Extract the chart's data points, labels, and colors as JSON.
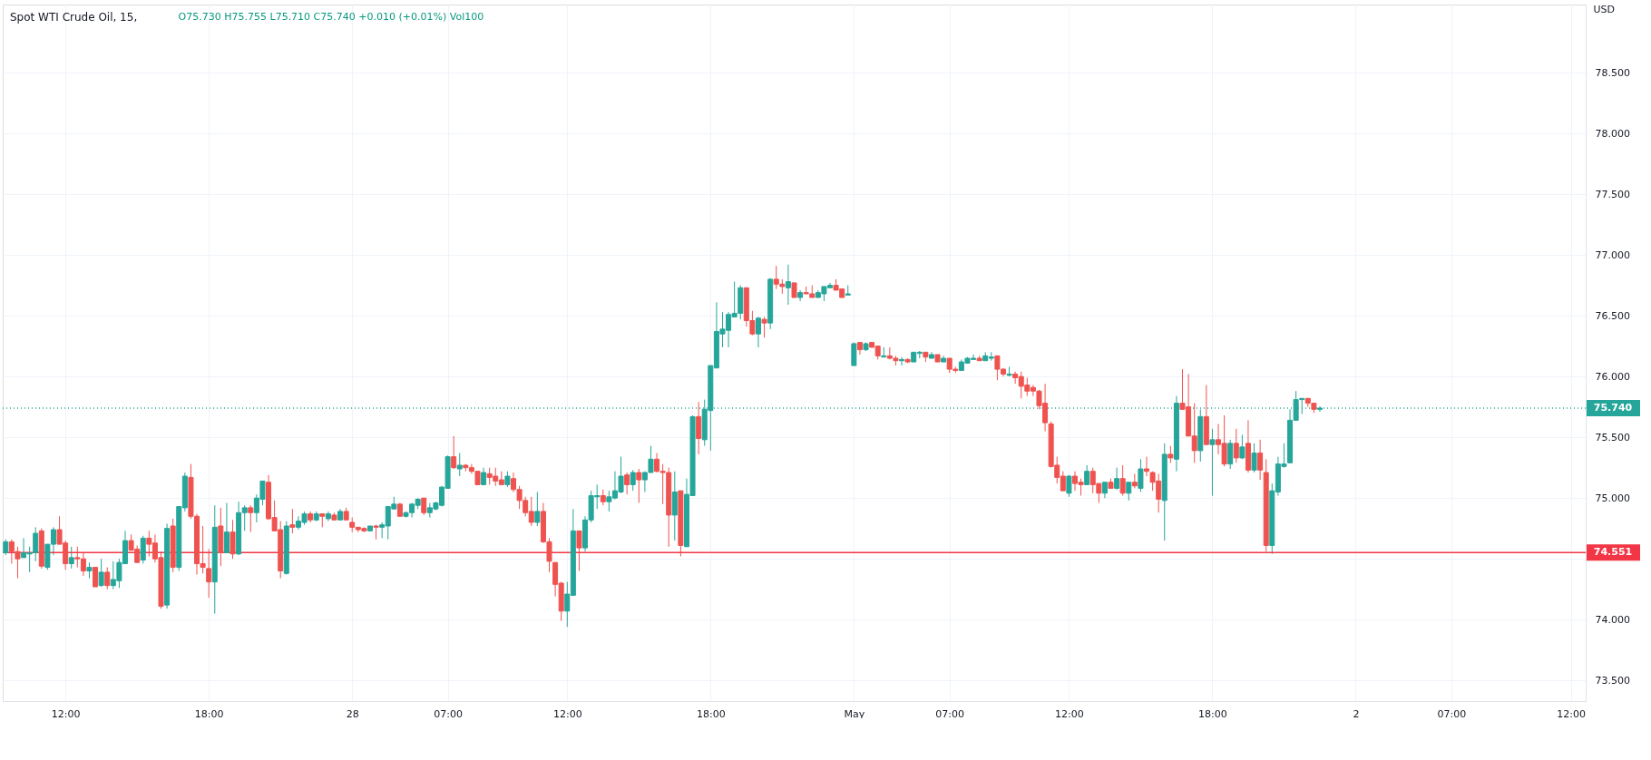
{
  "chart_data": {
    "type": "candlestick",
    "title": "Spot WTI Crude Oil, 15,",
    "subtitle": "O75.730 H75.755 L75.710 C75.740 +0.010 (+0.01%) Vol100",
    "ylabel": "USD",
    "categories": [
      null,
      null,
      null,
      null,
      null,
      null,
      null,
      null,
      null,
      null,
      "12:00",
      null,
      null,
      null,
      null,
      null,
      null,
      null,
      null,
      null,
      null,
      null,
      null,
      null,
      null,
      null,
      null,
      null,
      null,
      null,
      null,
      null,
      null,
      null,
      "18:00",
      null,
      null,
      null,
      null,
      null,
      null,
      null,
      null,
      null,
      null,
      null,
      null,
      null,
      null,
      null,
      null,
      null,
      null,
      null,
      null,
      null,
      null,
      null,
      "28",
      null,
      null,
      null,
      null,
      null,
      null,
      null,
      null,
      null,
      null,
      null,
      null,
      null,
      null,
      null,
      "07:00",
      null,
      null,
      null,
      null,
      null,
      null,
      null,
      null,
      null,
      null,
      null,
      null,
      null,
      null,
      null,
      null,
      null,
      null,
      null,
      "12:00",
      null,
      null,
      null,
      null,
      null,
      null,
      null,
      null,
      null,
      null,
      null,
      null,
      null,
      null,
      null,
      null,
      null,
      null,
      null,
      null,
      null,
      null,
      null,
      "18:00",
      null,
      null,
      null,
      null,
      null,
      null,
      null,
      null,
      null,
      null,
      null,
      null,
      null,
      null,
      null,
      null,
      null,
      null,
      null,
      null,
      null,
      null,
      null,
      "May",
      null,
      null,
      null,
      null,
      null,
      null,
      null,
      null,
      null,
      null,
      null,
      null,
      null,
      null,
      null,
      "07:00",
      null,
      null,
      null,
      null,
      null,
      null,
      null,
      null,
      null,
      null,
      null,
      null,
      null,
      null,
      null,
      null,
      null,
      null,
      null,
      "12:00",
      null,
      null,
      null,
      null,
      null,
      null,
      null,
      null,
      null,
      null,
      null,
      null,
      null,
      null,
      null,
      null,
      null,
      null,
      null,
      null,
      null,
      null,
      null,
      "18:00",
      null,
      null,
      null,
      null,
      null,
      null,
      null,
      null,
      null,
      null,
      null,
      null,
      null,
      null,
      null,
      null,
      null,
      null,
      null,
      null,
      null,
      null,
      null,
      "2",
      null,
      null,
      null,
      null,
      null,
      null,
      null,
      null,
      null,
      null,
      null,
      null,
      null,
      null,
      null,
      "07:00",
      null,
      null,
      null,
      null,
      null,
      null,
      null,
      null,
      null,
      null,
      null,
      null,
      null,
      null,
      null,
      null,
      null,
      null,
      null,
      "12:00",
      null,
      null
    ],
    "ohlc": [
      [
        74.55,
        74.66,
        74.53,
        74.64
      ],
      [
        74.64,
        74.66,
        74.46,
        74.56
      ],
      [
        74.56,
        74.6,
        74.34,
        74.5
      ],
      [
        74.51,
        74.67,
        74.51,
        74.55
      ],
      [
        74.54,
        74.6,
        74.39,
        74.55
      ],
      [
        74.55,
        74.76,
        74.48,
        74.71
      ],
      [
        74.73,
        74.75,
        74.42,
        74.44
      ],
      [
        74.43,
        74.62,
        74.41,
        74.62
      ],
      [
        74.62,
        74.76,
        74.53,
        74.74
      ],
      [
        74.74,
        74.85,
        74.62,
        74.62
      ],
      [
        74.63,
        74.65,
        74.41,
        74.46
      ],
      [
        74.46,
        74.6,
        74.42,
        74.51
      ],
      [
        74.51,
        74.6,
        74.43,
        74.5
      ],
      [
        74.5,
        74.55,
        74.36,
        74.4
      ],
      [
        74.4,
        74.47,
        74.34,
        74.43
      ],
      [
        74.43,
        74.43,
        74.27,
        74.27
      ],
      [
        74.28,
        74.5,
        74.27,
        74.39
      ],
      [
        74.39,
        74.43,
        74.25,
        74.28
      ],
      [
        74.28,
        74.48,
        74.25,
        74.33
      ],
      [
        74.32,
        74.5,
        74.26,
        74.47
      ],
      [
        74.46,
        74.73,
        74.46,
        74.65
      ],
      [
        74.65,
        74.7,
        74.57,
        74.57
      ],
      [
        74.58,
        74.61,
        74.47,
        74.47
      ],
      [
        74.49,
        74.69,
        74.46,
        74.67
      ],
      [
        74.67,
        74.73,
        74.52,
        74.62
      ],
      [
        74.63,
        74.7,
        74.47,
        74.5
      ],
      [
        74.51,
        74.56,
        74.09,
        74.11
      ],
      [
        74.12,
        74.79,
        74.09,
        74.75
      ],
      [
        74.77,
        74.83,
        74.39,
        74.43
      ],
      [
        74.43,
        74.93,
        74.4,
        74.93
      ],
      [
        74.92,
        75.21,
        74.89,
        75.18
      ],
      [
        75.17,
        75.28,
        74.83,
        74.85
      ],
      [
        74.85,
        74.87,
        74.37,
        74.46
      ],
      [
        74.46,
        74.77,
        74.38,
        74.43
      ],
      [
        74.42,
        74.58,
        74.18,
        74.31
      ],
      [
        74.31,
        74.94,
        74.05,
        74.76
      ],
      [
        74.77,
        74.92,
        74.44,
        74.55
      ],
      [
        74.55,
        74.96,
        74.55,
        74.72
      ],
      [
        74.72,
        74.82,
        74.5,
        74.54
      ],
      [
        74.54,
        74.97,
        74.53,
        74.88
      ],
      [
        74.88,
        74.94,
        74.73,
        74.92
      ],
      [
        74.92,
        74.94,
        74.72,
        74.88
      ],
      [
        74.88,
        75.03,
        74.8,
        75.0
      ],
      [
        74.99,
        75.14,
        74.94,
        75.14
      ],
      [
        75.13,
        75.19,
        74.82,
        74.83
      ],
      [
        74.84,
        74.98,
        74.73,
        74.73
      ],
      [
        74.74,
        74.81,
        74.34,
        74.4
      ],
      [
        74.38,
        74.81,
        74.37,
        74.77
      ],
      [
        74.78,
        74.91,
        74.71,
        74.76
      ],
      [
        74.76,
        74.85,
        74.74,
        74.81
      ],
      [
        74.8,
        74.89,
        74.78,
        74.87
      ],
      [
        74.87,
        74.89,
        74.8,
        74.82
      ],
      [
        74.82,
        74.89,
        74.81,
        74.87
      ],
      [
        74.87,
        74.87,
        74.76,
        74.85
      ],
      [
        74.83,
        74.89,
        74.81,
        74.87
      ],
      [
        74.86,
        74.88,
        74.82,
        74.82
      ],
      [
        74.82,
        74.91,
        74.82,
        74.89
      ],
      [
        74.89,
        74.92,
        74.82,
        74.82
      ],
      [
        74.8,
        74.84,
        74.72,
        74.76
      ],
      [
        74.76,
        74.76,
        74.72,
        74.74
      ],
      [
        74.75,
        74.76,
        74.72,
        74.73
      ],
      [
        74.73,
        74.77,
        74.73,
        74.77
      ],
      [
        74.77,
        74.78,
        74.66,
        74.76
      ],
      [
        74.76,
        74.8,
        74.67,
        74.78
      ],
      [
        74.77,
        74.93,
        74.66,
        74.93
      ],
      [
        74.91,
        75.01,
        74.91,
        74.95
      ],
      [
        74.95,
        74.96,
        74.85,
        74.85
      ],
      [
        74.85,
        74.89,
        74.84,
        74.88
      ],
      [
        74.88,
        74.96,
        74.84,
        74.95
      ],
      [
        74.94,
        75.0,
        74.91,
        74.99
      ],
      [
        75.0,
        75.0,
        74.86,
        74.88
      ],
      [
        74.88,
        74.96,
        74.84,
        74.92
      ],
      [
        74.91,
        74.97,
        74.9,
        74.96
      ],
      [
        74.94,
        75.1,
        74.93,
        75.09
      ],
      [
        75.08,
        75.35,
        75.08,
        75.34
      ],
      [
        75.34,
        75.51,
        75.24,
        75.25
      ],
      [
        75.24,
        75.37,
        75.18,
        75.27
      ],
      [
        75.27,
        75.28,
        75.22,
        75.25
      ],
      [
        75.25,
        75.28,
        75.2,
        75.22
      ],
      [
        75.22,
        75.22,
        75.11,
        75.11
      ],
      [
        75.11,
        75.25,
        75.11,
        75.21
      ],
      [
        75.2,
        75.25,
        75.11,
        75.17
      ],
      [
        75.18,
        75.25,
        75.1,
        75.14
      ],
      [
        75.15,
        75.22,
        75.11,
        75.11
      ],
      [
        75.11,
        75.22,
        75.09,
        75.18
      ],
      [
        75.16,
        75.21,
        75.05,
        75.07
      ],
      [
        75.07,
        75.1,
        74.91,
        74.98
      ],
      [
        74.98,
        75.01,
        74.85,
        74.88
      ],
      [
        74.89,
        75.01,
        74.77,
        74.8
      ],
      [
        74.8,
        75.05,
        74.77,
        74.89
      ],
      [
        74.89,
        74.96,
        74.63,
        74.64
      ],
      [
        74.64,
        74.67,
        74.39,
        74.48
      ],
      [
        74.47,
        74.47,
        74.19,
        74.29
      ],
      [
        74.3,
        74.31,
        73.99,
        74.07
      ],
      [
        74.07,
        74.31,
        73.94,
        74.21
      ],
      [
        74.2,
        74.91,
        74.2,
        74.73
      ],
      [
        74.73,
        74.73,
        74.4,
        74.59
      ],
      [
        74.59,
        74.85,
        74.56,
        74.82
      ],
      [
        74.82,
        75.06,
        74.8,
        75.02
      ],
      [
        75.01,
        75.11,
        74.91,
        75.02
      ],
      [
        75.02,
        75.07,
        74.94,
        74.97
      ],
      [
        74.97,
        75.06,
        74.89,
        75.01
      ],
      [
        75.0,
        75.22,
        74.99,
        75.06
      ],
      [
        75.05,
        75.34,
        75.04,
        75.18
      ],
      [
        75.19,
        75.21,
        75.03,
        75.11
      ],
      [
        75.11,
        75.23,
        75.06,
        75.21
      ],
      [
        75.21,
        75.24,
        74.96,
        75.15
      ],
      [
        75.15,
        75.22,
        75.05,
        75.21
      ],
      [
        75.21,
        75.43,
        75.21,
        75.32
      ],
      [
        75.32,
        75.37,
        75.21,
        75.22
      ],
      [
        75.22,
        75.28,
        74.95,
        75.21
      ],
      [
        75.21,
        75.25,
        74.6,
        74.86
      ],
      [
        74.86,
        75.22,
        74.65,
        75.05
      ],
      [
        75.06,
        75.06,
        74.52,
        74.61
      ],
      [
        74.6,
        75.16,
        74.6,
        75.03
      ],
      [
        75.02,
        75.68,
        75.02,
        75.67
      ],
      [
        75.67,
        75.79,
        75.36,
        75.49
      ],
      [
        75.48,
        75.81,
        75.43,
        75.73
      ],
      [
        75.72,
        76.09,
        75.39,
        76.09
      ],
      [
        76.07,
        76.61,
        76.07,
        76.37
      ],
      [
        76.35,
        76.53,
        76.24,
        76.39
      ],
      [
        76.38,
        76.53,
        76.24,
        76.51
      ],
      [
        76.49,
        76.78,
        76.49,
        76.52
      ],
      [
        76.52,
        76.75,
        76.47,
        76.73
      ],
      [
        76.73,
        76.73,
        76.41,
        76.46
      ],
      [
        76.46,
        76.54,
        76.34,
        76.35
      ],
      [
        76.35,
        76.49,
        76.24,
        76.48
      ],
      [
        76.47,
        76.49,
        76.32,
        76.44
      ],
      [
        76.44,
        76.81,
        76.39,
        76.8
      ],
      [
        76.8,
        76.91,
        76.72,
        76.76
      ],
      [
        76.76,
        76.8,
        76.68,
        76.74
      ],
      [
        76.73,
        76.92,
        76.59,
        76.78
      ],
      [
        76.77,
        76.77,
        76.65,
        76.65
      ],
      [
        76.65,
        76.71,
        76.62,
        76.69
      ],
      [
        76.69,
        76.74,
        76.68,
        76.68
      ],
      [
        76.68,
        76.75,
        76.65,
        76.65
      ],
      [
        76.65,
        76.71,
        76.65,
        76.69
      ],
      [
        76.68,
        76.74,
        76.62,
        76.74
      ],
      [
        76.73,
        76.77,
        76.73,
        76.75
      ],
      [
        76.75,
        76.8,
        76.71,
        76.71
      ],
      [
        76.72,
        76.72,
        76.65,
        76.65
      ],
      [
        76.67,
        76.75,
        76.67,
        76.68
      ],
      [
        76.09,
        76.28,
        76.09,
        76.27
      ],
      [
        76.28,
        76.28,
        76.18,
        76.22
      ],
      [
        76.22,
        76.28,
        76.21,
        76.27
      ],
      [
        76.28,
        76.28,
        76.24,
        76.24
      ],
      [
        76.25,
        76.25,
        76.14,
        76.17
      ],
      [
        76.16,
        76.24,
        76.16,
        76.17
      ],
      [
        76.17,
        76.24,
        76.14,
        76.15
      ],
      [
        76.15,
        76.17,
        76.09,
        76.13
      ],
      [
        76.13,
        76.16,
        76.09,
        76.14
      ],
      [
        76.14,
        76.15,
        76.11,
        76.12
      ],
      [
        76.12,
        76.2,
        76.12,
        76.2
      ],
      [
        76.19,
        76.21,
        76.15,
        76.2
      ],
      [
        76.2,
        76.2,
        76.12,
        76.16
      ],
      [
        76.15,
        76.2,
        76.15,
        76.18
      ],
      [
        76.18,
        76.18,
        76.12,
        76.12
      ],
      [
        76.12,
        76.17,
        76.12,
        76.15
      ],
      [
        76.15,
        76.15,
        76.03,
        76.06
      ],
      [
        76.06,
        76.08,
        76.03,
        76.05
      ],
      [
        76.05,
        76.14,
        76.05,
        76.12
      ],
      [
        76.11,
        76.16,
        76.11,
        76.15
      ],
      [
        76.14,
        76.18,
        76.14,
        76.15
      ],
      [
        76.15,
        76.17,
        76.13,
        76.13
      ],
      [
        76.13,
        76.2,
        76.13,
        76.17
      ],
      [
        76.15,
        76.2,
        76.13,
        76.16
      ],
      [
        76.17,
        76.17,
        75.97,
        76.06
      ],
      [
        76.06,
        76.07,
        76.0,
        76.02
      ],
      [
        76.01,
        76.08,
        76.0,
        76.02
      ],
      [
        76.02,
        76.04,
        75.94,
        75.99
      ],
      [
        76.0,
        76.04,
        75.82,
        75.92
      ],
      [
        75.93,
        75.99,
        75.84,
        75.88
      ],
      [
        75.91,
        75.93,
        75.84,
        75.88
      ],
      [
        75.88,
        75.89,
        75.73,
        75.76
      ],
      [
        75.78,
        75.94,
        75.55,
        75.62
      ],
      [
        75.61,
        75.63,
        75.25,
        75.26
      ],
      [
        75.27,
        75.34,
        75.12,
        75.17
      ],
      [
        75.18,
        75.22,
        75.06,
        75.06
      ],
      [
        75.04,
        75.19,
        75.01,
        75.18
      ],
      [
        75.18,
        75.22,
        75.06,
        75.12
      ],
      [
        75.13,
        75.16,
        75.02,
        75.11
      ],
      [
        75.11,
        75.27,
        75.11,
        75.22
      ],
      [
        75.22,
        75.25,
        75.04,
        75.11
      ],
      [
        75.12,
        75.12,
        74.96,
        75.04
      ],
      [
        75.04,
        75.13,
        75.0,
        75.13
      ],
      [
        75.13,
        75.16,
        75.08,
        75.08
      ],
      [
        75.08,
        75.25,
        75.07,
        75.16
      ],
      [
        75.16,
        75.27,
        75.02,
        75.04
      ],
      [
        75.04,
        75.13,
        74.98,
        75.13
      ],
      [
        75.13,
        75.2,
        75.08,
        75.1
      ],
      [
        75.08,
        75.32,
        75.05,
        75.24
      ],
      [
        75.24,
        75.34,
        75.18,
        75.22
      ],
      [
        75.21,
        75.22,
        75.06,
        75.13
      ],
      [
        75.14,
        75.2,
        74.88,
        74.99
      ],
      [
        74.98,
        75.45,
        74.65,
        75.36
      ],
      [
        75.36,
        75.43,
        75.29,
        75.33
      ],
      [
        75.32,
        75.84,
        75.22,
        75.78
      ],
      [
        75.78,
        76.06,
        75.73,
        75.73
      ],
      [
        75.75,
        76.02,
        75.51,
        75.51
      ],
      [
        75.51,
        75.78,
        75.29,
        75.39
      ],
      [
        75.39,
        75.73,
        75.3,
        75.67
      ],
      [
        75.67,
        75.93,
        75.44,
        75.44
      ],
      [
        75.44,
        75.57,
        75.02,
        75.48
      ],
      [
        75.48,
        75.61,
        75.36,
        75.44
      ],
      [
        75.45,
        75.68,
        75.26,
        75.28
      ],
      [
        75.28,
        75.48,
        75.24,
        75.45
      ],
      [
        75.45,
        75.57,
        75.29,
        75.33
      ],
      [
        75.33,
        75.52,
        75.32,
        75.42
      ],
      [
        75.45,
        75.64,
        75.21,
        75.23
      ],
      [
        75.23,
        75.45,
        75.21,
        75.37
      ],
      [
        75.37,
        75.48,
        75.15,
        75.23
      ],
      [
        75.21,
        75.32,
        74.56,
        74.61
      ],
      [
        74.61,
        75.12,
        74.54,
        75.06
      ],
      [
        75.05,
        75.34,
        75.02,
        75.28
      ],
      [
        75.26,
        75.45,
        75.25,
        75.28
      ],
      [
        75.29,
        75.73,
        75.29,
        75.64
      ],
      [
        75.64,
        75.88,
        75.64,
        75.81
      ],
      [
        75.81,
        75.82,
        75.69,
        75.82
      ],
      [
        75.82,
        75.82,
        75.75,
        75.78
      ],
      [
        75.78,
        75.78,
        75.7,
        75.73
      ],
      [
        75.73,
        75.755,
        75.71,
        75.74
      ],
      null,
      null,
      null,
      null,
      null,
      null,
      null,
      null,
      null,
      null,
      null,
      null,
      null,
      null,
      null,
      null,
      null,
      null,
      null,
      null,
      null,
      null,
      null,
      null,
      null,
      null,
      null,
      null,
      null,
      null,
      null,
      null,
      null,
      null,
      null,
      null,
      null,
      null,
      null,
      null,
      null,
      null,
      null,
      null
    ],
    "colors": [
      "#26a69a",
      "#ef5350",
      "#ef5350",
      "#26a69a",
      "#26a69a",
      "#26a69a",
      "#ef5350",
      "#26a69a",
      "#26a69a",
      "#ef5350",
      "#ef5350",
      "#26a69a",
      "#ef5350",
      "#ef5350",
      "#26a69a",
      "#ef5350",
      "#26a69a",
      "#ef5350",
      "#26a69a",
      "#26a69a",
      "#26a69a",
      "#ef5350",
      "#ef5350",
      "#26a69a",
      "#ef5350",
      "#ef5350",
      "#ef5350",
      "#26a69a",
      "#ef5350",
      "#26a69a",
      "#26a69a",
      "#ef5350",
      "#ef5350",
      "#ef5350",
      "#ef5350",
      "#26a69a",
      "#ef5350",
      "#26a69a",
      "#ef5350",
      "#26a69a",
      "#26a69a",
      "#ef5350",
      "#26a69a",
      "#26a69a",
      "#ef5350",
      "#ef5350",
      "#ef5350",
      "#26a69a",
      "#ef5350",
      "#26a69a",
      "#26a69a",
      "#ef5350",
      "#26a69a",
      "#ef5350",
      "#26a69a",
      "#ef5350",
      "#26a69a",
      "#ef5350",
      "#ef5350",
      "#ef5350",
      "#ef5350",
      "#26a69a",
      "#ef5350",
      "#26a69a",
      "#26a69a",
      "#26a69a",
      "#ef5350",
      "#26a69a",
      "#26a69a",
      "#26a69a",
      "#ef5350",
      "#26a69a",
      "#26a69a",
      "#26a69a",
      "#26a69a",
      "#ef5350",
      "#26a69a",
      "#ef5350",
      "#ef5350",
      "#ef5350",
      "#26a69a",
      "#ef5350",
      "#ef5350",
      "#ef5350",
      "#26a69a",
      "#ef5350",
      "#ef5350",
      "#ef5350",
      "#ef5350",
      "#26a69a",
      "#ef5350",
      "#ef5350",
      "#ef5350",
      "#ef5350",
      "#26a69a",
      "#26a69a",
      "#ef5350",
      "#26a69a",
      "#26a69a",
      "#26a69a",
      "#ef5350",
      "#26a69a",
      "#26a69a",
      "#26a69a",
      "#ef5350",
      "#26a69a",
      "#ef5350",
      "#26a69a",
      "#26a69a",
      "#ef5350",
      "#ef5350",
      "#ef5350",
      "#26a69a",
      "#ef5350",
      "#26a69a",
      "#26a69a",
      "#ef5350",
      "#26a69a",
      "#26a69a",
      "#26a69a",
      "#26a69a",
      "#26a69a",
      "#26a69a",
      "#26a69a",
      "#ef5350",
      "#ef5350",
      "#26a69a",
      "#ef5350",
      "#26a69a",
      "#ef5350",
      "#ef5350",
      "#26a69a",
      "#ef5350",
      "#26a69a",
      "#ef5350",
      "#ef5350",
      "#26a69a",
      "#26a69a",
      "#26a69a",
      "#ef5350",
      "#ef5350",
      "#26a69a",
      "#26a69a",
      "#ef5350",
      "#26a69a",
      "#ef5350",
      "#ef5350",
      "#26a69a",
      "#ef5350",
      "#ef5350",
      "#26a69a",
      "#ef5350",
      "#26a69a",
      "#26a69a",
      "#ef5350",
      "#26a69a",
      "#ef5350",
      "#26a69a",
      "#ef5350",
      "#ef5350",
      "#26a69a",
      "#26a69a",
      "#26a69a",
      "#ef5350",
      "#26a69a",
      "#26a69a",
      "#ef5350",
      "#ef5350",
      "#26a69a",
      "#ef5350",
      "#ef5350",
      "#ef5350",
      "#ef5350",
      "#ef5350",
      "#ef5350",
      "#ef5350",
      "#ef5350",
      "#ef5350",
      "#26a69a",
      "#ef5350",
      "#ef5350",
      "#26a69a",
      "#ef5350",
      "#ef5350",
      "#26a69a",
      "#ef5350",
      "#26a69a",
      "#ef5350",
      "#26a69a",
      "#ef5350",
      "#26a69a",
      "#ef5350",
      "#ef5350",
      "#ef5350",
      "#26a69a",
      "#ef5350",
      "#26a69a",
      "#ef5350",
      "#ef5350",
      "#ef5350",
      "#26a69a",
      "#ef5350",
      "#26a69a",
      "#ef5350",
      "#ef5350",
      "#26a69a",
      "#ef5350",
      "#26a69a",
      "#ef5350",
      "#26a69a",
      "#ef5350",
      "#ef5350",
      "#26a69a",
      "#26a69a",
      "#26a69a",
      "#26a69a",
      "#26a69a",
      "#26a69a",
      "#ef5350",
      "#ef5350",
      "#26a69a",
      null,
      null,
      null,
      null,
      null,
      null,
      null,
      null,
      null,
      null,
      null,
      null,
      null,
      null,
      null,
      null,
      null,
      null,
      null,
      null,
      null,
      null,
      null,
      null,
      null,
      null,
      null,
      null,
      null,
      null,
      null,
      null,
      null,
      null,
      null,
      null,
      null,
      null,
      null,
      null,
      null,
      null,
      null,
      null
    ],
    "ylim": [
      73.33,
      79.06
    ],
    "yticks": [
      {
        "value": 73.5,
        "label": "73.500"
      },
      {
        "value": 74.0,
        "label": "74.000"
      },
      {
        "value": 74.5,
        "label": null
      },
      {
        "value": 75.0,
        "label": "75.000"
      },
      {
        "value": 75.5,
        "label": "75.500"
      },
      {
        "value": 76.0,
        "label": "76.000"
      },
      {
        "value": 76.5,
        "label": "76.500"
      },
      {
        "value": 77.0,
        "label": "77.000"
      },
      {
        "value": 77.5,
        "label": "77.500"
      },
      {
        "value": 78.0,
        "label": "78.000"
      },
      {
        "value": 78.5,
        "label": "78.500"
      }
    ],
    "grid": true,
    "ref_lines": [
      {
        "axis": "y",
        "value": 75.74,
        "label": "75.740",
        "color": "#26a69a",
        "line_style": "dotted"
      },
      {
        "axis": "y",
        "value": 74.551,
        "label": "74.551",
        "color": "#f23645",
        "line_style": "solid"
      }
    ]
  }
}
